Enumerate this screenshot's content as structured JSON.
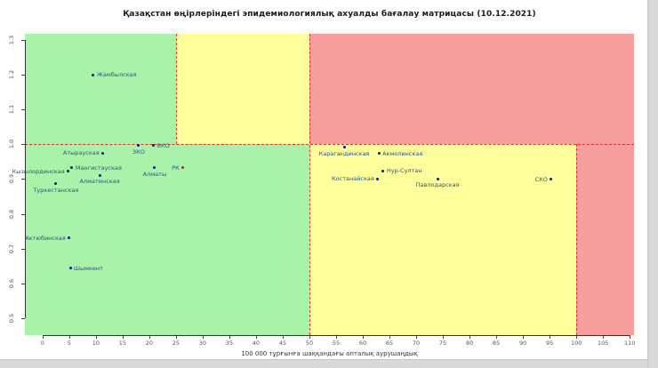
{
  "chart_data": {
    "type": "scatter",
    "title": "Қазақстан өңірлеріндегі эпидемиологиялық ахуалды бағалау матрицасы  (10.12.2021)",
    "xlabel": "100 000 тұрғынға шаққандағы апталық аурушаңдық",
    "ylabel": "",
    "xlim": [
      -3.3,
      110.8
    ],
    "ylim": [
      0.451,
      1.318
    ],
    "x_ticks": [
      0,
      5,
      10,
      15,
      20,
      25,
      30,
      35,
      40,
      45,
      50,
      55,
      60,
      65,
      70,
      75,
      80,
      85,
      90,
      95,
      100,
      105,
      110
    ],
    "y_ticks": [
      0.5,
      0.6,
      0.7,
      0.8,
      0.9,
      1.0,
      1.1,
      1.2,
      1.3
    ],
    "grid": false,
    "legend": "none",
    "colors": {
      "zone_green": "#A9F2A9",
      "zone_yellow": "#FFFF9C",
      "zone_red": "#F79E9E",
      "threshold_line": "#E03228",
      "point": "#14149B",
      "rk_point": "#B22222",
      "label_text": "#2E5577"
    },
    "regions": [
      {
        "name": "green-base",
        "x0": -3.3,
        "x1": 110.8,
        "y0": 0.451,
        "y1": 1.318,
        "color": "zone_green"
      },
      {
        "name": "yellow-top",
        "x0": 25,
        "x1": 50,
        "y0": 1.0,
        "y1": 1.318,
        "color": "zone_yellow"
      },
      {
        "name": "red-top-right",
        "x0": 50,
        "x1": 110.8,
        "y0": 1.0,
        "y1": 1.318,
        "color": "zone_red"
      },
      {
        "name": "yellow-bottom",
        "x0": 50,
        "x1": 100,
        "y0": 0.451,
        "y1": 1.0,
        "color": "zone_yellow"
      },
      {
        "name": "red-bottom-right",
        "x0": 100,
        "x1": 110.8,
        "y0": 0.451,
        "y1": 1.0,
        "color": "zone_red"
      }
    ],
    "threshold_lines": [
      {
        "orient": "h",
        "at": 1.0,
        "from": -3.3,
        "to": 110.8
      },
      {
        "orient": "v",
        "at": 25,
        "from": 1.0,
        "to": 1.318
      },
      {
        "orient": "v",
        "at": 50,
        "from": 0.451,
        "to": 1.318
      },
      {
        "orient": "v",
        "at": 100,
        "from": 0.451,
        "to": 1.0
      }
    ],
    "points": [
      {
        "name": "Жамбылская",
        "x": 9.5,
        "y": 1.2,
        "label_pos": "right"
      },
      {
        "name": "Атырауская",
        "x": 11.3,
        "y": 0.975,
        "label_pos": "left"
      },
      {
        "name": "ЗКО",
        "x": 18.0,
        "y": 0.996,
        "label_pos": "below"
      },
      {
        "name": "ВКО",
        "x": 20.8,
        "y": 0.996,
        "label_pos": "right"
      },
      {
        "name": "Алматы",
        "x": 21.0,
        "y": 0.932,
        "label_pos": "below"
      },
      {
        "name": "РК",
        "x": 26.3,
        "y": 0.932,
        "label_pos": "left",
        "color": "rk_point"
      },
      {
        "name": "Мангистауская",
        "x": 5.5,
        "y": 0.932,
        "label_pos": "right"
      },
      {
        "name": "Кызылординская",
        "x": 4.8,
        "y": 0.922,
        "label_pos": "left"
      },
      {
        "name": "Алматинская",
        "x": 10.7,
        "y": 0.911,
        "label_pos": "below"
      },
      {
        "name": "Туркестанская",
        "x": 2.5,
        "y": 0.886,
        "label_pos": "below"
      },
      {
        "name": "Актюбинская",
        "x": 5.0,
        "y": 0.73,
        "label_pos": "left"
      },
      {
        "name": "Шымкент",
        "x": 5.2,
        "y": 0.643,
        "label_pos": "right"
      },
      {
        "name": "Карагандинская",
        "x": 56.5,
        "y": 0.991,
        "label_pos": "below"
      },
      {
        "name": "Акмолинская",
        "x": 63.0,
        "y": 0.973,
        "label_pos": "right"
      },
      {
        "name": "Нур-Султан",
        "x": 63.8,
        "y": 0.924,
        "label_pos": "right"
      },
      {
        "name": "Костанайская",
        "x": 62.8,
        "y": 0.901,
        "label_pos": "left"
      },
      {
        "name": "Павлодарская",
        "x": 74.0,
        "y": 0.901,
        "label_pos": "below"
      },
      {
        "name": "СКО",
        "x": 95.3,
        "y": 0.899,
        "label_pos": "left"
      }
    ]
  }
}
